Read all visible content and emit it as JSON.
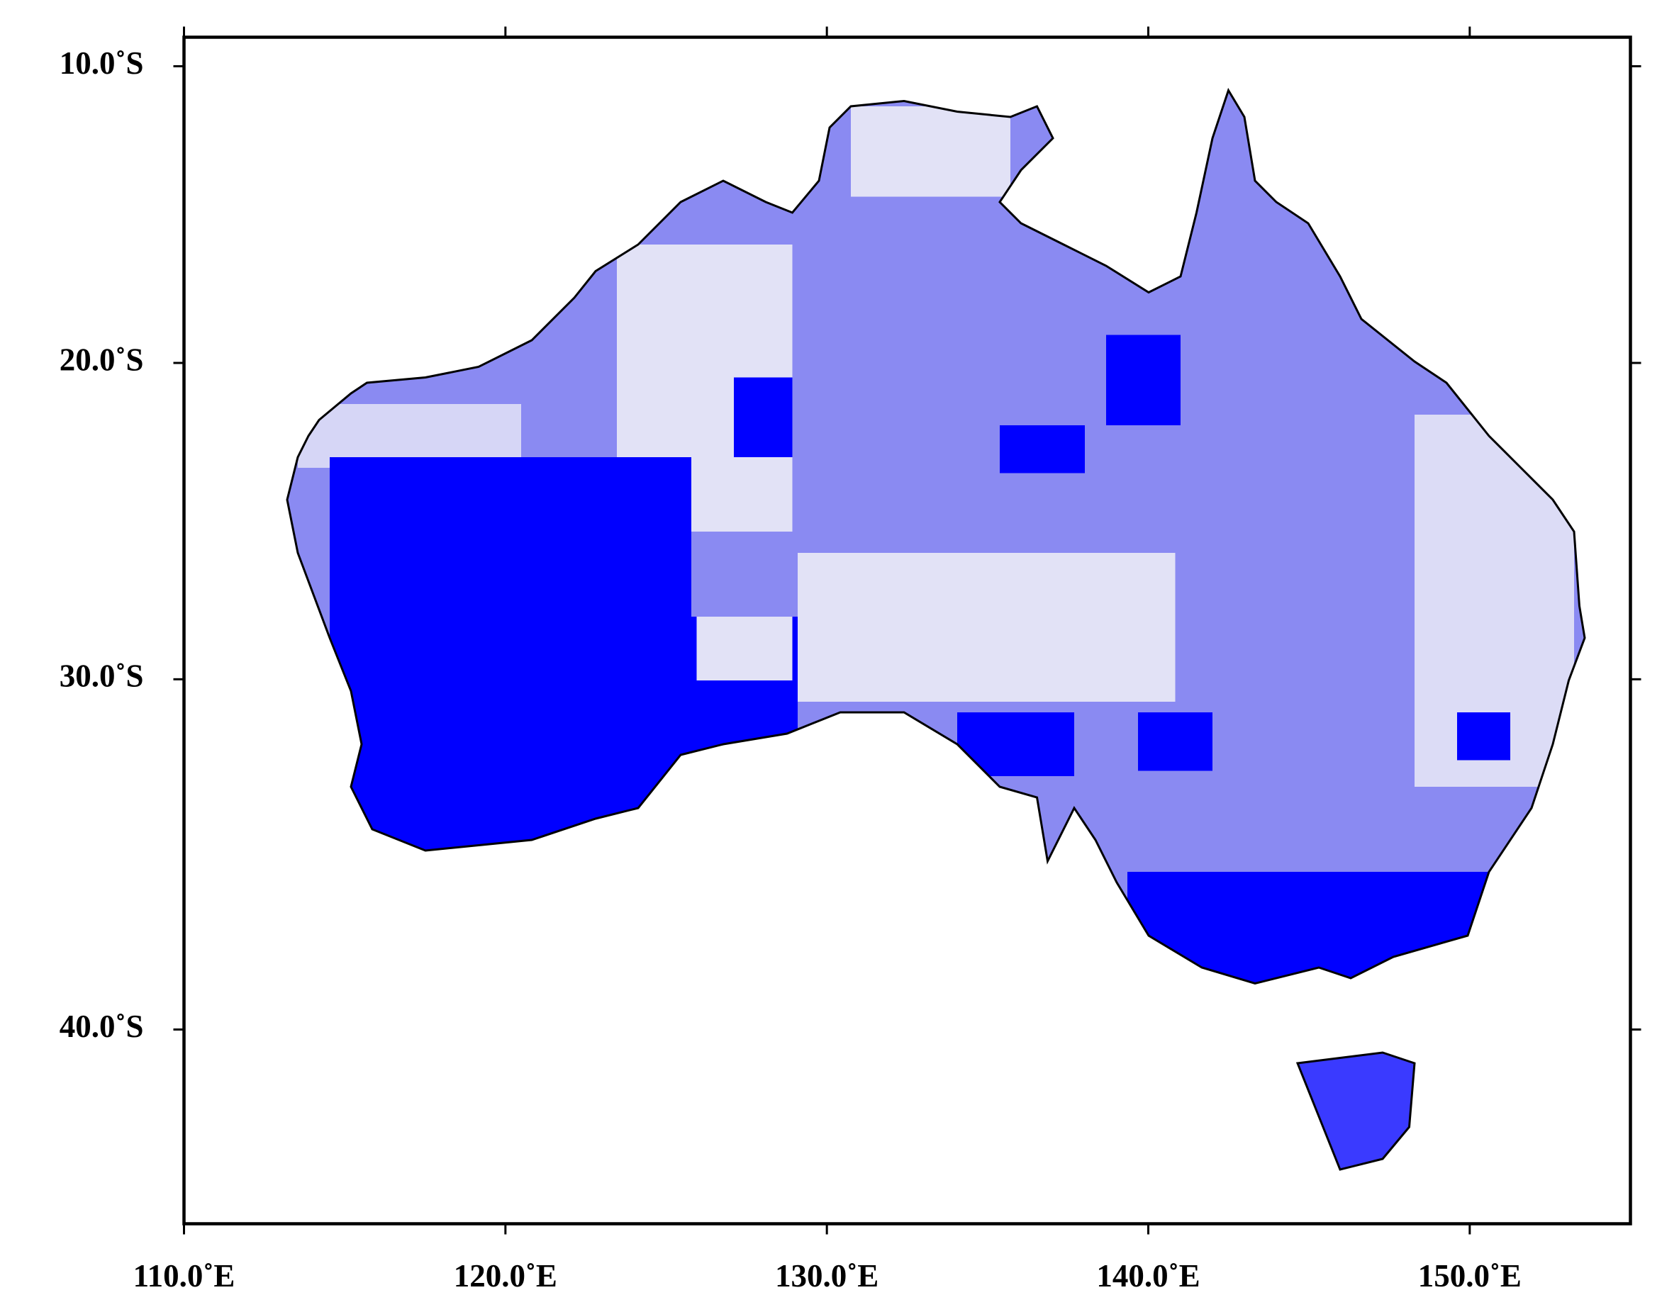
{
  "map": {
    "projection": "mercator",
    "xlim": [
      110,
      155
    ],
    "ylim": [
      -45,
      -9
    ],
    "xticks": [
      {
        "value": 110,
        "label": "110.0˚E"
      },
      {
        "value": 120,
        "label": "120.0˚E"
      },
      {
        "value": 130,
        "label": "130.0˚E"
      },
      {
        "value": 140,
        "label": "140.0˚E"
      },
      {
        "value": 150,
        "label": "150.0˚E"
      }
    ],
    "yticks": [
      {
        "value": -10,
        "label": "10.0˚S"
      },
      {
        "value": -20,
        "label": "20.0˚S"
      },
      {
        "value": -30,
        "label": "30.0˚S"
      },
      {
        "value": -40,
        "label": "40.0˚S"
      }
    ]
  }
}
